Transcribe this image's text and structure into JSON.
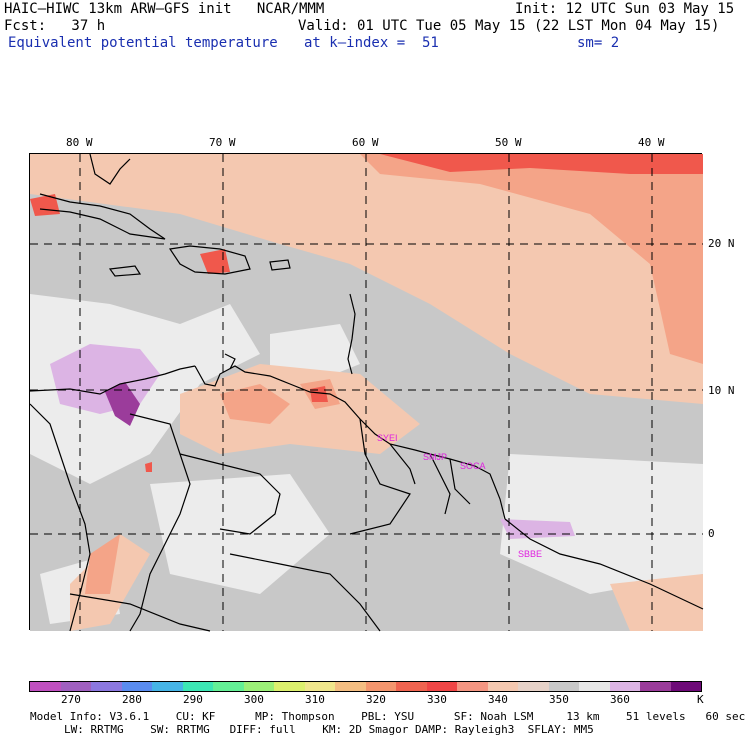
{
  "header": {
    "model_line": "HAIC–HIWC 13km ARW–GFS init   NCAR/MMM",
    "init_line": "Init: 12 UTC Sun 03 May 15",
    "fcst_line": "Fcst:   37 h",
    "valid_line": "Valid: 01 UTC Tue 05 May 15 (22 LST Mon 04 May 15)",
    "field_name": "Equivalent potential temperature",
    "level_line": "at k–index =  51",
    "smooth_line": "sm= 2"
  },
  "map": {
    "lon_labels": [
      "80 W",
      "70 W",
      "60 W",
      "50 W",
      "40 W"
    ],
    "lat_labels": [
      "20 N",
      "10 N",
      "0"
    ],
    "stations": [
      "SYEI",
      "SMJP",
      "SOCA",
      "SBBE"
    ],
    "colors": {
      "background_grey": "#c8c8c8",
      "light": "#ececec",
      "peach": "#f4c8b0",
      "salmon": "#f4a488",
      "red": "#f0584c",
      "lavender": "#dcb4e4",
      "purple": "#9b3c9b",
      "station_text": "#e020e0"
    }
  },
  "colorbar": {
    "colors": [
      "#c050c0",
      "#a060c0",
      "#8c78e0",
      "#5a8cf0",
      "#46b4e6",
      "#3ce6b4",
      "#64f096",
      "#9cf078",
      "#dcf06e",
      "#f0e68c",
      "#f4be82",
      "#f4966e",
      "#f06450",
      "#f04646",
      "#f49682",
      "#f4c8b0",
      "#e6d2c8",
      "#c8c8c8",
      "#e6e6e6",
      "#dcb4e4",
      "#9b3c9b",
      "#6e0a78"
    ],
    "labels": [
      "270",
      "280",
      "290",
      "300",
      "310",
      "320",
      "330",
      "340",
      "350",
      "360",
      "K"
    ]
  },
  "footer": {
    "line1": "Model Info: V3.6.1    CU: KF      MP: Thompson    PBL: YSU      SF: Noah LSM     13 km    51 levels   60 sec",
    "line2": "LW: RRTMG    SW: RRTMG   DIFF: full    KM: 2D Smagor DAMP: Rayleigh3  SFLAY: MM5"
  }
}
